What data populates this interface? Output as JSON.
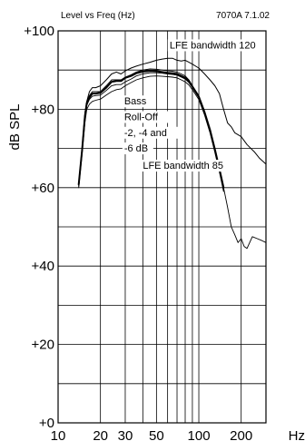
{
  "chart_data": {
    "type": "line",
    "title_left": "Level vs Freq (Hz)",
    "title_right": "7070A 7.1.02",
    "xlabel": "",
    "ylabel": "dB SPL",
    "x_scale": "log",
    "xlim": [
      10,
      300
    ],
    "ylim": [
      0,
      100
    ],
    "grid": true,
    "x_gridlines": [
      20,
      30,
      40,
      50,
      60,
      70,
      80,
      90,
      100,
      200
    ],
    "x_ticks": [
      {
        "value": 10,
        "label": "10"
      },
      {
        "value": 20,
        "label": "20"
      },
      {
        "value": 30,
        "label": "30"
      },
      {
        "value": 50,
        "label": "50"
      },
      {
        "value": 100,
        "label": "100"
      },
      {
        "value": 200,
        "label": "200"
      },
      {
        "value": 300,
        "label": "Hz"
      }
    ],
    "y_gridlines": [
      10,
      20,
      30,
      40,
      50,
      60,
      70,
      80,
      90,
      100
    ],
    "y_ticks": [
      {
        "value": 100,
        "label": "+100"
      },
      {
        "value": 80,
        "label": "+80"
      },
      {
        "value": 60,
        "label": "+60"
      },
      {
        "value": 40,
        "label": "+40"
      },
      {
        "value": 20,
        "label": "+20"
      },
      {
        "value": 0,
        "label": "+0"
      }
    ],
    "annotations": [
      {
        "text": "LFE bandwidth 120",
        "x": 62,
        "y": 95.5
      },
      {
        "text": "Bass",
        "x": 29.5,
        "y": 81.2
      },
      {
        "text": "Roll-Off",
        "x": 29.5,
        "y": 77.2
      },
      {
        "text": "-2, -4 and",
        "x": 29.5,
        "y": 73.2
      },
      {
        "text": "-6 dB",
        "x": 29.5,
        "y": 69.2
      },
      {
        "text": "LFE bandwidth 85",
        "x": 40,
        "y": 64.8
      }
    ],
    "series": [
      {
        "name": "LFE bandwidth 120",
        "stroke_width": 1.0,
        "x": [
          14,
          14.8,
          15.5,
          16,
          16.7,
          17.5,
          18.5,
          20,
          22,
          24,
          26,
          28,
          30,
          33,
          36,
          40,
          45,
          50,
          55,
          60,
          65,
          70,
          75,
          80,
          85,
          90,
          100,
          110,
          120,
          130,
          140,
          150,
          160,
          170,
          180,
          200,
          220,
          250,
          270,
          300
        ],
        "y": [
          61,
          70,
          79,
          82,
          84.5,
          85.5,
          85.5,
          86,
          87.5,
          89,
          89.5,
          89,
          89.8,
          90.5,
          91,
          91.5,
          92,
          92.5,
          92.8,
          93,
          93,
          92.5,
          92.3,
          92.5,
          92,
          91.5,
          90.5,
          89,
          87.5,
          86,
          84,
          80,
          76.5,
          75.5,
          74,
          73,
          71,
          69,
          67.5,
          66
        ]
      },
      {
        "name": "Bass Roll-Off -2 dB",
        "stroke_width": 0.9,
        "x": [
          14,
          14.8,
          15.5,
          16,
          16.7,
          17.5,
          18.5,
          20,
          22,
          24,
          26,
          28,
          30,
          33,
          36,
          40,
          45,
          50,
          55,
          60,
          65,
          70,
          75,
          80,
          85,
          90,
          100,
          110,
          120,
          130,
          140,
          150
        ],
        "y": [
          60.5,
          69.5,
          78.5,
          82,
          83.5,
          84.5,
          84.5,
          84.5,
          86,
          87.5,
          87.5,
          87.5,
          88.2,
          88.8,
          89.5,
          90,
          90.3,
          90.2,
          90,
          89.8,
          89.7,
          89.5,
          89,
          88.5,
          87.5,
          86,
          83.5,
          79.5,
          75,
          70,
          65,
          60
        ]
      },
      {
        "name": "Bass Roll-Off -4 dB",
        "stroke_width": 0.9,
        "x": [
          14,
          14.8,
          15.5,
          16,
          16.7,
          17.5,
          18.5,
          20,
          22,
          24,
          26,
          28,
          30,
          33,
          36,
          40,
          45,
          50,
          55,
          60,
          65,
          70,
          75,
          80,
          85,
          90,
          100,
          110,
          120,
          130,
          140,
          150
        ],
        "y": [
          60.3,
          69,
          77.5,
          81,
          82.5,
          83.3,
          83.5,
          83.6,
          84.8,
          86,
          86.3,
          86.3,
          87,
          87.7,
          88.5,
          89,
          89.3,
          89.3,
          89.2,
          89,
          88.9,
          88.7,
          88.2,
          87.7,
          86.8,
          85.5,
          83,
          79,
          74.5,
          69.5,
          64.5,
          59.5
        ]
      },
      {
        "name": "Bass Roll-Off -6 dB",
        "stroke_width": 0.9,
        "x": [
          14,
          14.8,
          15.5,
          16,
          16.7,
          17.5,
          18.5,
          20,
          22,
          24,
          26,
          28,
          30,
          33,
          36,
          40,
          45,
          50,
          55,
          60,
          65,
          70,
          75,
          80,
          85,
          90,
          100,
          110,
          120,
          130,
          140,
          150
        ],
        "y": [
          60,
          68.5,
          76.5,
          80,
          81.3,
          82,
          82.3,
          82.6,
          83.6,
          84.5,
          85,
          85.2,
          86,
          86.8,
          87.5,
          88,
          88.4,
          88.5,
          88.4,
          88.3,
          88.2,
          88,
          87.5,
          87,
          86.2,
          85,
          82.5,
          78.5,
          74,
          69,
          64,
          59
        ]
      },
      {
        "name": "LFE bandwidth 85",
        "stroke_width": 2.0,
        "x": [
          14,
          14.8,
          15.5,
          16,
          16.7,
          17.5,
          18.5,
          20,
          22,
          24,
          26,
          28,
          30,
          33,
          36,
          40,
          45,
          50,
          55,
          60,
          65,
          70,
          75,
          80,
          85,
          90,
          100,
          110,
          120,
          130,
          140,
          150
        ],
        "y": [
          60.8,
          69.5,
          78,
          81.6,
          83,
          84,
          84,
          84.2,
          85.5,
          87,
          87.2,
          87.2,
          88,
          88.5,
          89.2,
          89.6,
          89.8,
          89.7,
          89.5,
          89.3,
          89.2,
          89,
          88.5,
          88,
          87.2,
          85.8,
          83.2,
          79.2,
          74.8,
          69.8,
          64.8,
          60
        ]
      },
      {
        "name": "LFE bandwidth 120 tail",
        "stroke_width": 0.9,
        "x": [
          150,
          160,
          170,
          180,
          190,
          200,
          210,
          220,
          240,
          260,
          280,
          300
        ],
        "y": [
          60,
          55,
          50,
          48,
          46,
          47,
          45,
          44.5,
          47.5,
          47,
          46.5,
          46
        ]
      }
    ]
  }
}
